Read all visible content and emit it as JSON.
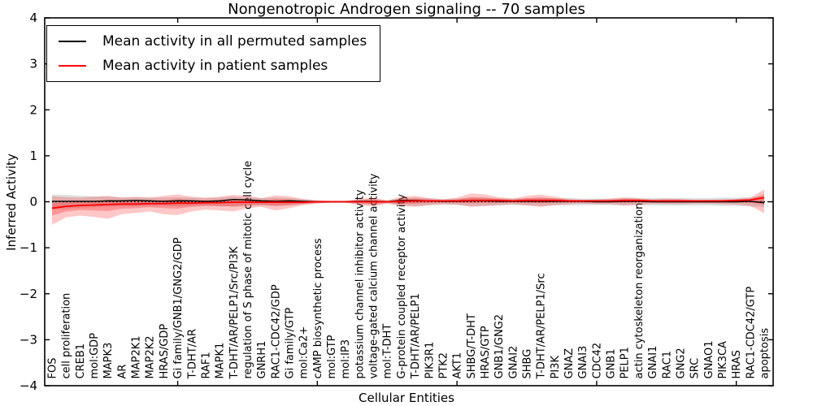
{
  "chart_data": {
    "type": "line",
    "title": "Nongenotropic Androgen signaling -- 70 samples",
    "xlabel": "Cellular Entities",
    "ylabel": "Inferred Activity",
    "ylim": [
      -4,
      4
    ],
    "yticks": [
      {
        "value": 4,
        "label": "4"
      },
      {
        "value": 3,
        "label": "3"
      },
      {
        "value": 2,
        "label": "2"
      },
      {
        "value": 1,
        "label": "1"
      },
      {
        "value": 0,
        "label": "0"
      },
      {
        "value": -1,
        "label": "−1"
      },
      {
        "value": -2,
        "label": "−2"
      },
      {
        "value": -3,
        "label": "−3"
      },
      {
        "value": -4,
        "label": "−4"
      }
    ],
    "x_major_tick_indices": [
      9,
      19,
      29,
      39,
      49
    ],
    "grid": false,
    "zero_line": {
      "style": "dotted",
      "color": "#000000",
      "value": 0
    },
    "categories": [
      "FOS",
      "cell proliferation",
      "CREB1",
      "mol:GDP",
      "MAPK3",
      "AR",
      "MAP2K1",
      "MAP2K2",
      "HRAS/GDP",
      "Gi family/GNB1/GNG2/GDP",
      "T-DHT/AR",
      "RAF1",
      "MAPK1",
      "T-DHT/AR/PELP1/Src/PI3K",
      "regulation of S phase of mitotic cell cycle",
      "GNRH1",
      "RAC1-CDC42/GDP",
      "Gi family/GTP",
      "mol:Ca2+",
      "cAMP biosynthetic process",
      "mol:GTP",
      "mol:IP3",
      "potassium channel inhibitor activity",
      "voltage-gated calcium channel activity",
      "mol:T-DHT",
      "G-protein coupled receptor activity",
      "T-DHT/AR/PELP1",
      "PIK3R1",
      "PTK2",
      "AKT1",
      "SHBG/T-DHT",
      "HRAS/GTP",
      "GNB1/GNG2",
      "GNAI2",
      "SHBG",
      "T-DHT/AR/PELP1/Src",
      "PI3K",
      "GNAZ",
      "GNAI3",
      "CDC42",
      "GNB1",
      "PELP1",
      "actin cytoskeleton reorganization",
      "GNAI1",
      "RAC1",
      "GNG2",
      "SRC",
      "GNAO1",
      "PIK3CA",
      "HRAS",
      "RAC1-CDC42/GTP",
      "apoptosis"
    ],
    "series": [
      {
        "name": "permuted_mean",
        "color": "#000000",
        "width": 1.4,
        "values": [
          0.01,
          0.01,
          0.01,
          0.01,
          0.02,
          0.02,
          0.03,
          0.02,
          0.01,
          0.02,
          0.02,
          0.01,
          0.02,
          0.05,
          0.04,
          0.02,
          0.01,
          0.02,
          0.01,
          0.0,
          0.0,
          0.0,
          0.01,
          0.01,
          0.0,
          0.03,
          0.03,
          0.02,
          0.01,
          0.01,
          0.02,
          0.02,
          0.01,
          0.01,
          0.01,
          0.01,
          0.01,
          0.01,
          0.01,
          0.0,
          0.0,
          0.01,
          0.01,
          0.0,
          0.0,
          0.0,
          0.0,
          0.0,
          0.0,
          0.0,
          0.01,
          -0.02
        ]
      },
      {
        "name": "patient_mean",
        "color": "#ff0000",
        "width": 1.8,
        "values": [
          -0.14,
          -0.1,
          -0.08,
          -0.07,
          -0.06,
          -0.05,
          -0.05,
          -0.04,
          -0.04,
          -0.03,
          -0.03,
          -0.02,
          -0.02,
          -0.01,
          -0.01,
          -0.01,
          -0.01,
          -0.01,
          -0.01,
          0.0,
          0.0,
          0.0,
          0.0,
          0.0,
          0.0,
          0.01,
          0.02,
          0.02,
          0.02,
          0.02,
          0.03,
          0.03,
          0.03,
          0.02,
          0.03,
          0.03,
          0.03,
          0.02,
          0.02,
          0.02,
          0.02,
          0.03,
          0.03,
          0.02,
          0.02,
          0.02,
          0.02,
          0.02,
          0.02,
          0.03,
          0.04,
          0.09
        ]
      }
    ],
    "bands": [
      {
        "name": "permuted_std",
        "color": "#999999",
        "opacity": 0.32,
        "upper": [
          0.16,
          0.15,
          0.13,
          0.12,
          0.11,
          0.1,
          0.1,
          0.09,
          0.09,
          0.1,
          0.09,
          0.08,
          0.09,
          0.11,
          0.1,
          0.08,
          0.09,
          0.08,
          0.06,
          0.03,
          0.02,
          0.02,
          0.05,
          0.07,
          0.03,
          0.08,
          0.09,
          0.08,
          0.06,
          0.07,
          0.09,
          0.09,
          0.08,
          0.07,
          0.08,
          0.09,
          0.08,
          0.08,
          0.07,
          0.07,
          0.07,
          0.08,
          0.08,
          0.08,
          0.08,
          0.08,
          0.08,
          0.08,
          0.09,
          0.09,
          0.1,
          0.12
        ],
        "lower": [
          -0.16,
          -0.15,
          -0.13,
          -0.12,
          -0.11,
          -0.1,
          -0.1,
          -0.09,
          -0.09,
          -0.1,
          -0.09,
          -0.08,
          -0.09,
          -0.11,
          -0.1,
          -0.08,
          -0.09,
          -0.08,
          -0.06,
          -0.03,
          -0.02,
          -0.02,
          -0.05,
          -0.07,
          -0.03,
          -0.08,
          -0.09,
          -0.08,
          -0.06,
          -0.07,
          -0.09,
          -0.09,
          -0.08,
          -0.07,
          -0.08,
          -0.09,
          -0.08,
          -0.08,
          -0.07,
          -0.07,
          -0.07,
          -0.08,
          -0.08,
          -0.08,
          -0.08,
          -0.08,
          -0.08,
          -0.08,
          -0.09,
          -0.09,
          -0.1,
          -0.12
        ]
      },
      {
        "name": "patient_std_outer",
        "color": "#ff0000",
        "opacity": 0.22,
        "upper": [
          0.12,
          0.1,
          0.09,
          0.11,
          0.13,
          0.09,
          0.11,
          0.09,
          0.13,
          0.16,
          0.11,
          0.09,
          0.11,
          0.15,
          0.13,
          0.08,
          0.14,
          0.12,
          0.06,
          0.03,
          0.02,
          0.02,
          0.06,
          0.09,
          0.03,
          0.11,
          0.13,
          0.08,
          0.05,
          0.09,
          0.18,
          0.16,
          0.1,
          0.07,
          0.13,
          0.16,
          0.11,
          0.06,
          0.04,
          0.05,
          0.07,
          0.1,
          0.08,
          0.05,
          0.07,
          0.06,
          0.04,
          0.04,
          0.05,
          0.06,
          0.09,
          0.27
        ],
        "lower": [
          -0.5,
          -0.34,
          -0.3,
          -0.33,
          -0.37,
          -0.27,
          -0.24,
          -0.21,
          -0.27,
          -0.29,
          -0.21,
          -0.17,
          -0.19,
          -0.21,
          -0.14,
          -0.11,
          -0.19,
          -0.14,
          -0.07,
          -0.04,
          -0.02,
          -0.02,
          -0.07,
          -0.1,
          -0.04,
          -0.09,
          -0.11,
          -0.07,
          -0.05,
          -0.06,
          -0.11,
          -0.09,
          -0.07,
          -0.05,
          -0.08,
          -0.11,
          -0.07,
          -0.05,
          -0.04,
          -0.05,
          -0.05,
          -0.08,
          -0.06,
          -0.04,
          -0.05,
          -0.05,
          -0.04,
          -0.04,
          -0.05,
          -0.06,
          -0.09,
          -0.25
        ]
      },
      {
        "name": "patient_std_inner",
        "color": "#ff0000",
        "opacity": 0.25,
        "upper": [
          -0.02,
          -0.01,
          0.0,
          0.01,
          0.03,
          0.01,
          0.02,
          0.02,
          0.04,
          0.06,
          0.03,
          0.03,
          0.04,
          0.06,
          0.05,
          0.03,
          0.06,
          0.05,
          0.02,
          0.01,
          0.01,
          0.01,
          0.03,
          0.04,
          0.01,
          0.06,
          0.07,
          0.05,
          0.03,
          0.05,
          0.1,
          0.09,
          0.06,
          0.04,
          0.08,
          0.09,
          0.07,
          0.04,
          0.03,
          0.03,
          0.04,
          0.06,
          0.05,
          0.03,
          0.04,
          0.04,
          0.03,
          0.03,
          0.03,
          0.04,
          0.06,
          0.17
        ],
        "lower": [
          -0.3,
          -0.21,
          -0.18,
          -0.19,
          -0.2,
          -0.15,
          -0.14,
          -0.12,
          -0.14,
          -0.15,
          -0.11,
          -0.09,
          -0.1,
          -0.1,
          -0.07,
          -0.06,
          -0.09,
          -0.07,
          -0.04,
          -0.02,
          -0.01,
          -0.01,
          -0.03,
          -0.05,
          -0.02,
          -0.04,
          -0.04,
          -0.02,
          -0.01,
          -0.02,
          -0.03,
          -0.02,
          -0.02,
          -0.01,
          -0.02,
          -0.03,
          -0.02,
          -0.01,
          -0.01,
          -0.01,
          -0.01,
          -0.02,
          -0.01,
          -0.01,
          -0.01,
          -0.01,
          -0.01,
          -0.01,
          -0.01,
          -0.01,
          -0.02,
          -0.06
        ]
      }
    ],
    "legend": {
      "position": "upper left",
      "items": [
        {
          "label": "Mean activity in all permuted samples",
          "color": "#000000"
        },
        {
          "label": "Mean activity in patient samples",
          "color": "#ff0000"
        }
      ]
    }
  }
}
